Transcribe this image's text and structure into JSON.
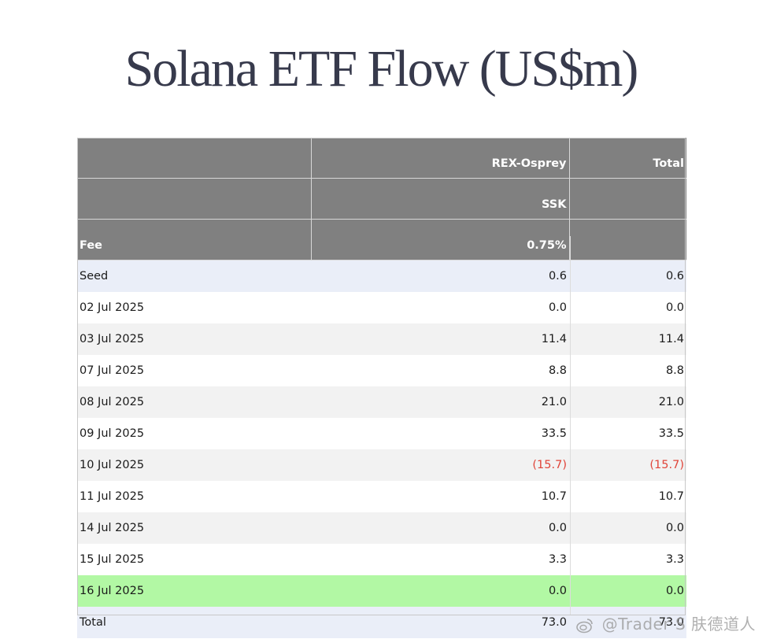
{
  "title": "Solana ETF Flow (US$m)",
  "header_rows": [
    {
      "label": "",
      "col1": "REX-Osprey",
      "col2": "Total"
    },
    {
      "label": "",
      "col1": "SSK",
      "col2": ""
    },
    {
      "label": "Fee",
      "col1": "0.75%",
      "col2": ""
    }
  ],
  "rows": [
    {
      "label": "Seed",
      "ssk": "0.6",
      "total": "0.6"
    },
    {
      "label": "02 Jul 2025",
      "ssk": "0.0",
      "total": "0.0"
    },
    {
      "label": "03 Jul 2025",
      "ssk": "11.4",
      "total": "11.4"
    },
    {
      "label": "07 Jul 2025",
      "ssk": "8.8",
      "total": "8.8"
    },
    {
      "label": "08 Jul 2025",
      "ssk": "21.0",
      "total": "21.0"
    },
    {
      "label": "09 Jul 2025",
      "ssk": "33.5",
      "total": "33.5"
    },
    {
      "label": "10 Jul 2025",
      "ssk": "(15.7)",
      "total": "(15.7)"
    },
    {
      "label": "11 Jul 2025",
      "ssk": "10.7",
      "total": "10.7"
    },
    {
      "label": "14 Jul 2025",
      "ssk": "0.0",
      "total": "0.0"
    },
    {
      "label": "15 Jul 2025",
      "ssk": "3.3",
      "total": "3.3"
    },
    {
      "label": "16 Jul 2025",
      "ssk": "0.0",
      "total": "0.0"
    },
    {
      "label": "Total",
      "ssk": "73.0",
      "total": "73.0"
    }
  ],
  "colors": {
    "header_bg": "#808080",
    "seed_total_bg": "#eaeef8",
    "alt_row_bg": "#f2f2f2",
    "latest_row_bg": "#b2f8a4",
    "negative_text": "#e0453a",
    "title_text": "#373a4c"
  },
  "watermark": {
    "icon": "weibo-icon",
    "text": "@Trader S 肤德道人"
  }
}
